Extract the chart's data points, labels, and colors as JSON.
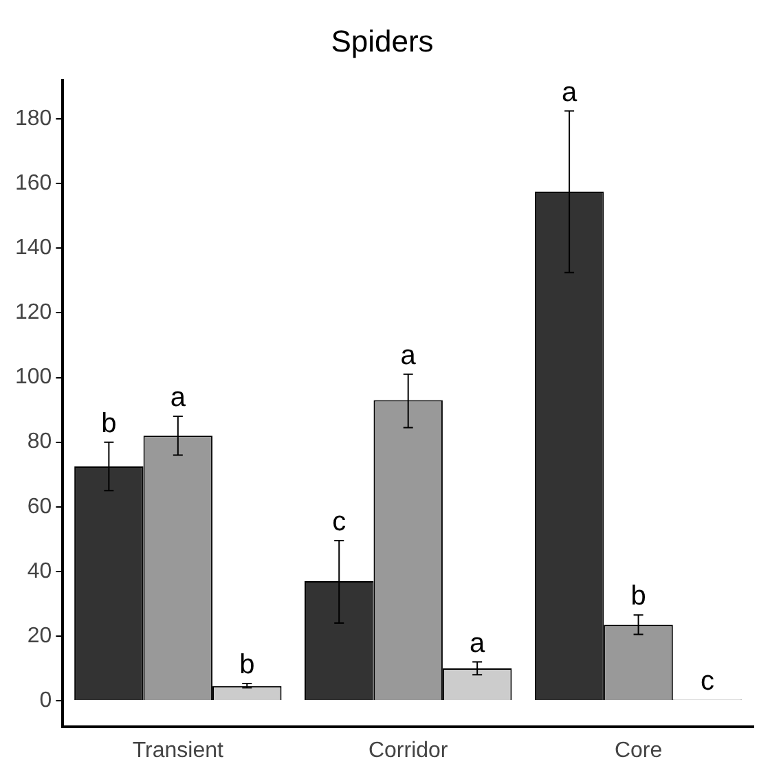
{
  "chart_data": {
    "type": "bar",
    "title": "Spiders",
    "categories": [
      "Transient",
      "Corridor",
      "Core"
    ],
    "series": [
      {
        "color": "#333333",
        "values": [
          72.5,
          37,
          157.5
        ],
        "errors": [
          [
            65,
            80
          ],
          [
            24,
            49.5
          ],
          [
            132.5,
            182.5
          ]
        ],
        "value_labels": [
          "b",
          "c",
          "a"
        ]
      },
      {
        "color": "#999999",
        "values": [
          82,
          93,
          23.5
        ],
        "errors": [
          [
            76,
            88
          ],
          [
            84.5,
            101
          ],
          [
            20.5,
            26.5
          ]
        ],
        "value_labels": [
          "a",
          "a",
          "b"
        ]
      },
      {
        "color": "#cccccc",
        "values": [
          4.5,
          10,
          0.3
        ],
        "errors": [
          [
            4,
            5.3
          ],
          [
            8,
            12
          ],
          null
        ],
        "value_labels": [
          "b",
          "a",
          "c"
        ]
      }
    ],
    "ylim": [
      -8,
      192
    ],
    "yticks": [
      0,
      20,
      40,
      60,
      80,
      100,
      120,
      140,
      160,
      180
    ],
    "grid": false,
    "legend": false
  }
}
